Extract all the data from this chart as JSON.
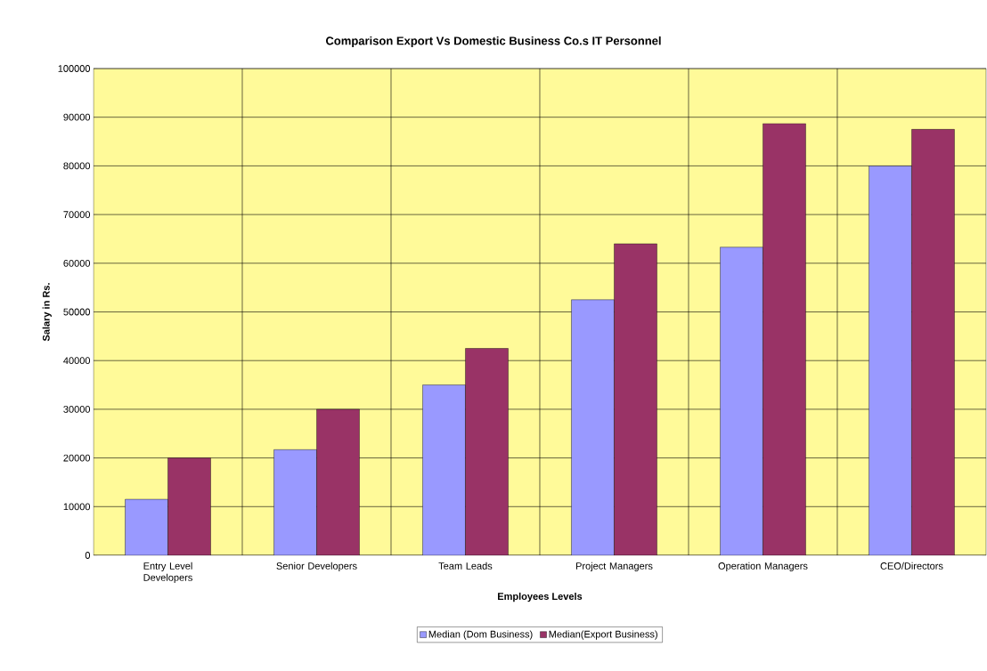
{
  "chart_data": {
    "type": "bar",
    "title": "Comparison Export Vs Domestic Business Co.s IT Personnel",
    "xlabel": "Employees Levels",
    "ylabel": "Salary in Rs.",
    "categories": [
      "Entry Level Developers",
      "Senior Developers",
      "Team Leads",
      "Project Managers",
      "Operation Managers",
      "CEO/Directors"
    ],
    "series": [
      {
        "name": "Median (Dom Business)",
        "color": "#9999ff",
        "values": [
          11500,
          21700,
          35000,
          52500,
          63300,
          80000
        ]
      },
      {
        "name": "Median(Export Business)",
        "color": "#993366",
        "values": [
          20000,
          30000,
          42500,
          64000,
          88700,
          87500
        ]
      }
    ],
    "ylim": [
      0,
      100000
    ],
    "yticks": [
      0,
      10000,
      20000,
      30000,
      40000,
      50000,
      60000,
      70000,
      80000,
      90000,
      100000
    ],
    "grid": true,
    "legend": "bottom"
  }
}
